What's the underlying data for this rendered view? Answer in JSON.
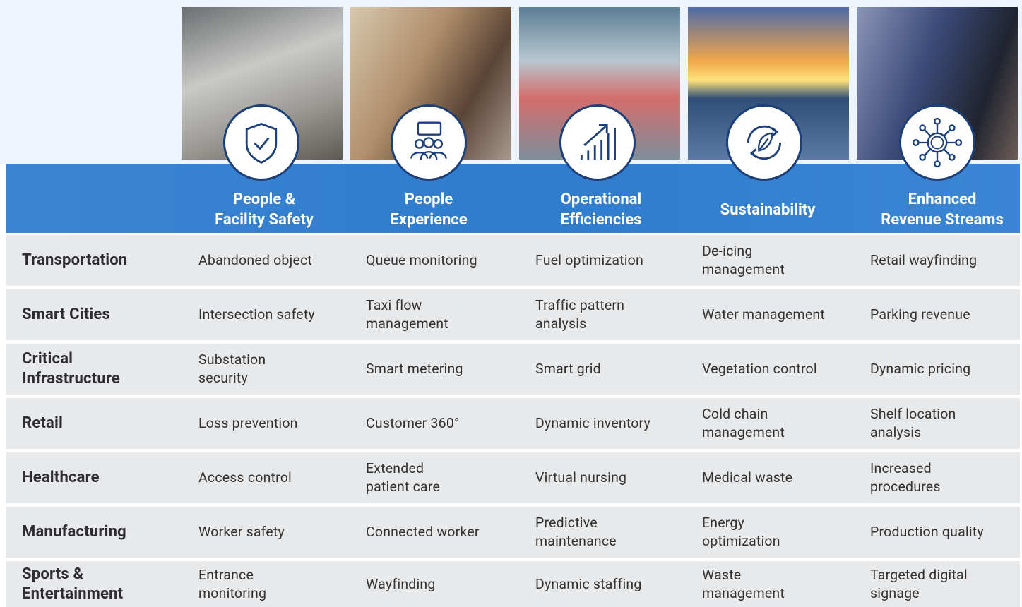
{
  "header": {
    "columns": [
      [
        "People &",
        "Facility Safety"
      ],
      [
        "People",
        "Experience"
      ],
      [
        "Operational",
        "Efficiencies"
      ],
      [
        "Sustainability"
      ],
      [
        "Enhanced",
        "Revenue Streams"
      ]
    ]
  },
  "table": {
    "rows": [
      {
        "label": [
          "Transportation"
        ],
        "cells": [
          [
            "Abandoned object"
          ],
          [
            "Queue monitoring"
          ],
          [
            "Fuel optimization"
          ],
          [
            "De-icing",
            "management"
          ],
          [
            "Retail wayfinding"
          ]
        ]
      },
      {
        "label": [
          "Smart Cities"
        ],
        "cells": [
          [
            "Intersection safety"
          ],
          [
            "Taxi flow",
            "management"
          ],
          [
            "Traffic pattern",
            "analysis"
          ],
          [
            "Water management"
          ],
          [
            "Parking revenue"
          ]
        ]
      },
      {
        "label": [
          "Critical",
          "Infrastructure"
        ],
        "cells": [
          [
            "Substation",
            "security"
          ],
          [
            "Smart metering"
          ],
          [
            "Smart grid"
          ],
          [
            "Vegetation control"
          ],
          [
            "Dynamic pricing"
          ]
        ]
      },
      {
        "label": [
          "Retail"
        ],
        "cells": [
          [
            "Loss prevention"
          ],
          [
            "Customer 360°"
          ],
          [
            "Dynamic inventory"
          ],
          [
            "Cold chain",
            "management"
          ],
          [
            "Shelf location",
            "analysis"
          ]
        ]
      },
      {
        "label": [
          "Healthcare"
        ],
        "cells": [
          [
            "Access control"
          ],
          [
            "Extended",
            "patient care"
          ],
          [
            "Virtual nursing"
          ],
          [
            "Medical waste"
          ],
          [
            "Increased",
            "procedures"
          ]
        ]
      },
      {
        "label": [
          "Manufacturing"
        ],
        "cells": [
          [
            "Worker safety"
          ],
          [
            "Connected worker"
          ],
          [
            "Predictive",
            "maintenance"
          ],
          [
            "Energy",
            "optimization"
          ],
          [
            "Production quality"
          ]
        ]
      },
      {
        "label": [
          "Sports &",
          "Entertainment"
        ],
        "cells": [
          [
            "Entrance",
            "monitoring"
          ],
          [
            "Wayfinding"
          ],
          [
            "Dynamic staffing"
          ],
          [
            "Waste",
            "management"
          ],
          [
            "Targeted digital",
            "signage"
          ]
        ]
      }
    ]
  }
}
